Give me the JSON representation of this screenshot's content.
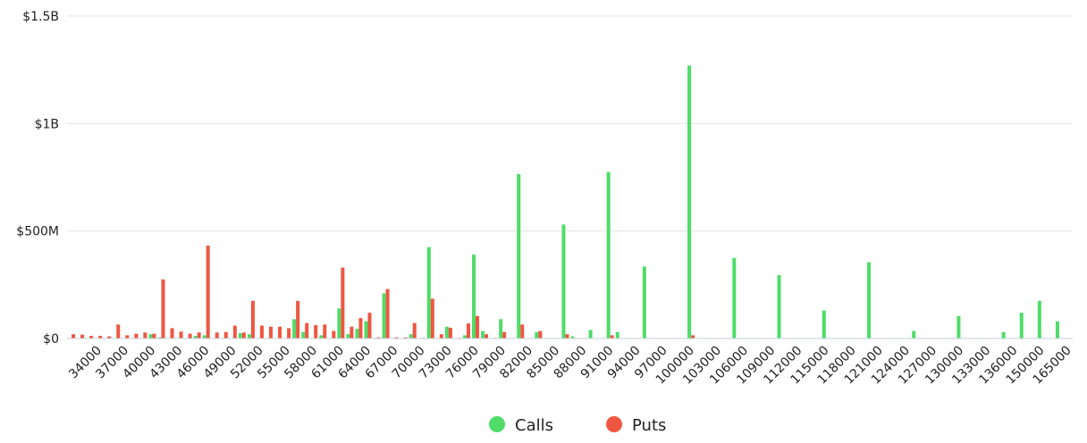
{
  "chart_data": {
    "type": "bar",
    "categories": [
      null,
      null,
      null,
      "34000",
      null,
      null,
      "37000",
      null,
      null,
      "40000",
      null,
      null,
      "43000",
      null,
      null,
      "46000",
      null,
      null,
      "49000",
      null,
      null,
      "52000",
      null,
      null,
      "55000",
      null,
      null,
      "58000",
      null,
      null,
      "61000",
      null,
      null,
      "64000",
      null,
      null,
      "67000",
      null,
      null,
      "70000",
      null,
      null,
      "73000",
      null,
      null,
      "76000",
      null,
      null,
      "79000",
      null,
      null,
      "82000",
      null,
      null,
      "85000",
      null,
      null,
      "88000",
      null,
      null,
      "91000",
      null,
      null,
      "94000",
      null,
      null,
      "97000",
      null,
      null,
      "100000",
      null,
      null,
      "103000",
      null,
      null,
      "106000",
      null,
      null,
      "109000",
      null,
      null,
      "112000",
      null,
      null,
      "115000",
      null,
      null,
      "118000",
      null,
      null,
      "121000",
      null,
      null,
      "124000",
      null,
      null,
      "127000",
      null,
      null,
      "130000",
      null,
      null,
      "133000",
      null,
      null,
      "136000",
      null,
      null,
      "150000",
      null,
      null,
      "165000"
    ],
    "series": [
      {
        "name": "Calls",
        "color": "#4fdc69",
        "values": [
          0,
          0,
          0,
          0,
          0,
          0,
          0,
          0,
          0,
          20000000,
          5000000,
          0,
          0,
          0,
          12000000,
          15000000,
          0,
          0,
          0,
          25000000,
          20000000,
          0,
          0,
          0,
          0,
          90000000,
          30000000,
          0,
          15000000,
          0,
          140000000,
          20000000,
          45000000,
          80000000,
          3000000,
          210000000,
          0,
          0,
          20000000,
          0,
          425000000,
          0,
          55000000,
          0,
          15000000,
          390000000,
          35000000,
          0,
          90000000,
          0,
          765000000,
          0,
          30000000,
          0,
          0,
          530000000,
          10000000,
          0,
          40000000,
          0,
          775000000,
          30000000,
          0,
          0,
          335000000,
          0,
          0,
          0,
          0,
          1270000000,
          0,
          0,
          0,
          0,
          375000000,
          0,
          0,
          0,
          0,
          295000000,
          0,
          0,
          0,
          0,
          130000000,
          0,
          0,
          0,
          0,
          355000000,
          0,
          0,
          0,
          0,
          35000000,
          0,
          0,
          0,
          0,
          105000000,
          0,
          0,
          0,
          0,
          30000000,
          0,
          120000000,
          0,
          175000000,
          0,
          80000000,
          0
        ]
      },
      {
        "name": "Puts",
        "color": "#ef5641",
        "values": [
          20000000,
          18000000,
          12000000,
          12000000,
          10000000,
          65000000,
          15000000,
          22000000,
          28000000,
          22000000,
          275000000,
          48000000,
          32000000,
          22000000,
          28000000,
          432000000,
          28000000,
          30000000,
          60000000,
          28000000,
          175000000,
          60000000,
          55000000,
          55000000,
          48000000,
          175000000,
          72000000,
          62000000,
          65000000,
          35000000,
          330000000,
          55000000,
          95000000,
          120000000,
          5000000,
          230000000,
          5000000,
          5000000,
          72000000,
          3000000,
          185000000,
          20000000,
          50000000,
          3000000,
          70000000,
          105000000,
          20000000,
          3000000,
          30000000,
          2000000,
          65000000,
          2000000,
          35000000,
          2000000,
          2000000,
          20000000,
          0,
          0,
          0,
          0,
          15000000,
          0,
          0,
          0,
          0,
          0,
          0,
          0,
          0,
          15000000,
          0,
          0,
          0,
          0,
          0,
          0,
          0,
          0,
          0,
          0,
          0,
          0,
          0,
          0,
          0,
          0,
          0,
          0,
          0,
          0,
          0,
          0,
          0,
          0,
          0,
          0,
          0,
          0,
          0,
          0,
          0,
          0,
          0,
          0,
          0,
          0,
          0,
          0,
          0,
          0,
          0,
          0
        ]
      }
    ],
    "ylim": [
      0,
      1500000000
    ],
    "yticks": [
      {
        "value": 0,
        "label": "$0"
      },
      {
        "value": 500000000,
        "label": "$500M"
      },
      {
        "value": 1000000000,
        "label": "$1B"
      },
      {
        "value": 1500000000,
        "label": "$1.5B"
      }
    ],
    "grid": true,
    "legend": "bottom"
  }
}
